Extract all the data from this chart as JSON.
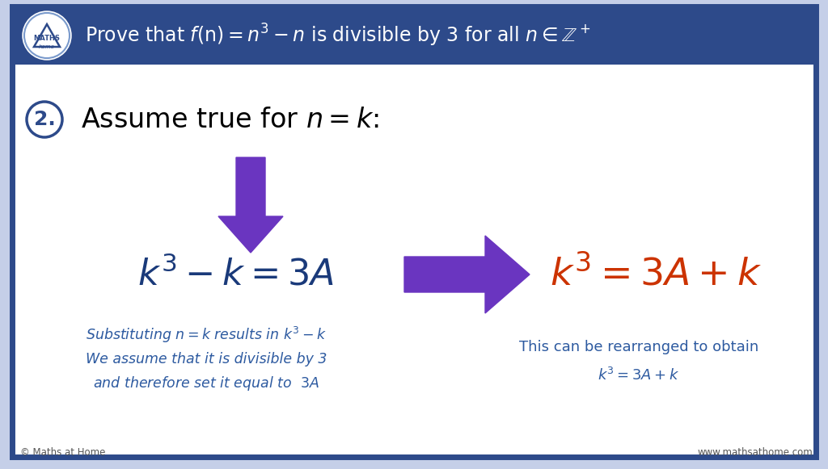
{
  "bg_outer": "#c5cfe8",
  "bg_inner": "#ffffff",
  "border_color": "#2d4a8a",
  "title_text": "Prove that $f(\\mathrm{n}) = n^3 - n$ is divisible by 3 for all $n \\in \\mathbb{Z}^+$",
  "step_number": "2.",
  "step_text": "Assume true for $n = k$:",
  "eq_left_color": "#1a3a7a",
  "eq_left": "$k^3 - k = 3A$",
  "eq_right_color": "#cc3300",
  "eq_right": "$k^3 = 3A + k$",
  "arrow_color": "#6a35c0",
  "note_left_color": "#2d5aa0",
  "note_left_line1": "Substituting $n = k$ results in $k^3 - k$",
  "note_left_line2": "We assume that it is divisible by 3",
  "note_left_line3": "and therefore set it equal to  $3A$",
  "note_right_color": "#2d5aa0",
  "note_right_line1": "This can be rearranged to obtain",
  "note_right_line2": "$k^3 = 3A + k$",
  "footer_left": "© Maths at Home",
  "footer_right": "www.mathsathome.com",
  "logo_text1": "MATHS",
  "logo_text2": "home"
}
